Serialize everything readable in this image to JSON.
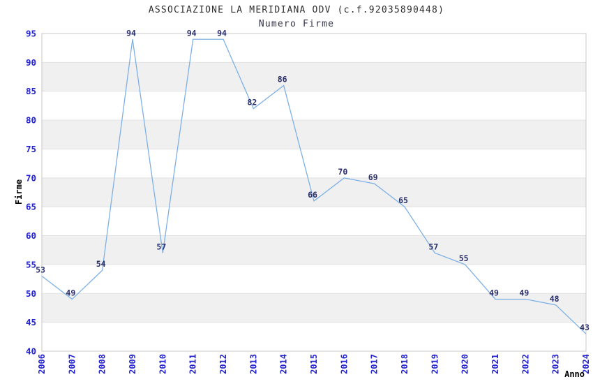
{
  "chart_data": {
    "type": "line",
    "title": "ASSOCIAZIONE LA MERIDIANA ODV (c.f.92035890448)",
    "subtitle": "Numero Firme",
    "xlabel": "Anno",
    "ylabel": "Firme",
    "x": [
      "2006",
      "2007",
      "2008",
      "2009",
      "2010",
      "2011",
      "2012",
      "2013",
      "2014",
      "2015",
      "2016",
      "2017",
      "2018",
      "2019",
      "2020",
      "2021",
      "2022",
      "2023",
      "2024"
    ],
    "values": [
      53,
      49,
      54,
      94,
      57,
      94,
      94,
      82,
      86,
      66,
      70,
      69,
      65,
      57,
      55,
      49,
      49,
      48,
      43
    ],
    "ylim": [
      40,
      95
    ],
    "ytick_step": 5,
    "yticks": [
      40,
      45,
      50,
      55,
      60,
      65,
      70,
      75,
      80,
      85,
      90,
      95
    ],
    "grid": true,
    "legend": "none",
    "point_labels_shown": true
  },
  "colors": {
    "line": "#7db0e6",
    "tick_label": "#2222cf",
    "data_label": "#2b2f6b",
    "band_gray": "#f0f0f0",
    "band_white": "#ffffff",
    "gridline": "#e2e2e2",
    "plot_border": "#c8c8c8",
    "title_text": "#2e2e2e",
    "axis_title_text": "#000000"
  }
}
